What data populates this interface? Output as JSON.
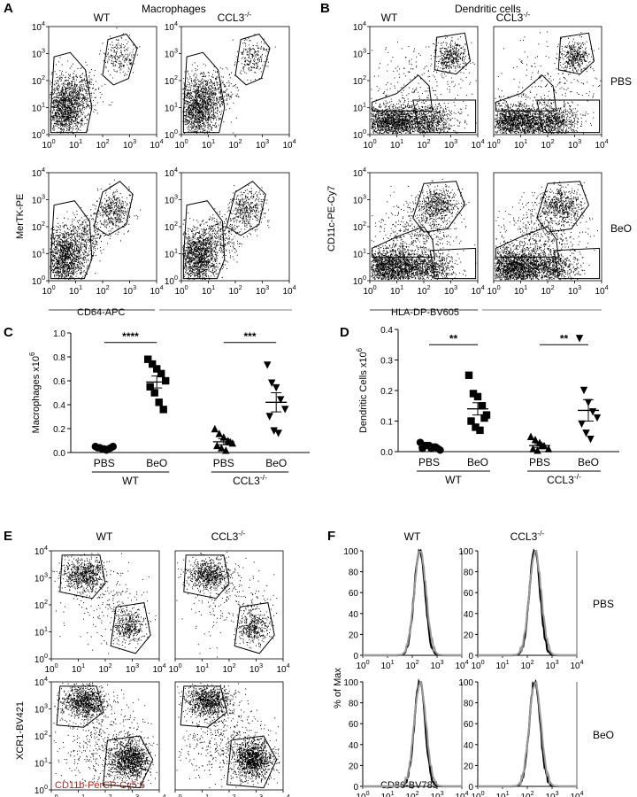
{
  "panels": {
    "A": {
      "label": "A",
      "title": "Macrophages",
      "columns": [
        "WT",
        "CCL3-/-"
      ],
      "xlabel": "CD64-APC",
      "ylabel": "MerTK-PE"
    },
    "B": {
      "label": "B",
      "title": "Dendritic cells",
      "columns": [
        "WT",
        "CCL3-/-"
      ],
      "rows": [
        "PBS",
        "BeO"
      ],
      "xlabel": "HLA-DP-BV605",
      "ylabel": "CD11c-PE-Cy7"
    },
    "C": {
      "label": "C",
      "ylabel": "Macrophages x10^6",
      "groups": [
        "PBS",
        "BeO",
        "PBS",
        "BeO"
      ],
      "genotypes": [
        "WT",
        "CCL3-/-"
      ],
      "significance": [
        "****",
        "***"
      ]
    },
    "D": {
      "label": "D",
      "ylabel": "Dendritic Cells x10^6",
      "groups": [
        "PBS",
        "BeO",
        "PBS",
        "BeO"
      ],
      "genotypes": [
        "WT",
        "CCL3-/-"
      ],
      "significance": [
        "**",
        "**"
      ]
    },
    "E": {
      "label": "E",
      "columns": [
        "WT",
        "CCL3-/-"
      ],
      "xlabel": "CD11b-PerCP-Cy5.5",
      "ylabel": "XCR1-BV421"
    },
    "F": {
      "label": "F",
      "columns": [
        "WT",
        "CCL3-/-"
      ],
      "rows": [
        "PBS",
        "BeO"
      ],
      "xlabel": "CD86-BV785",
      "ylabel": "% of Max"
    }
  },
  "log_ticks": [
    "10^0",
    "10^1",
    "10^2",
    "10^3",
    "10^4"
  ],
  "colors": {
    "axis": "#000000",
    "dots": "#000000",
    "histogram_gray": "#9a9a9a",
    "E_xlabel": "#c0221d"
  },
  "chart_data": [
    {
      "type": "scatter",
      "panel": "C",
      "ylabel": "Macrophages x10^6",
      "ylim": [
        0,
        1.0
      ],
      "yticks": [
        0.0,
        0.2,
        0.4,
        0.6,
        0.8,
        1.0
      ],
      "categories": [
        "PBS WT",
        "BeO WT",
        "PBS CCL3-/-",
        "BeO CCL3-/-"
      ],
      "markers": [
        "circle",
        "square",
        "triangle-up",
        "triangle-down"
      ],
      "series": [
        {
          "name": "PBS WT",
          "values": [
            0.05,
            0.04,
            0.03,
            0.03,
            0.05,
            0.04,
            0.03,
            0.02,
            0.04
          ],
          "mean": 0.04,
          "sem": 0.005
        },
        {
          "name": "BeO WT",
          "values": [
            0.78,
            0.74,
            0.7,
            0.66,
            0.6,
            0.55,
            0.5,
            0.42,
            0.36
          ],
          "mean": 0.59,
          "sem": 0.05
        },
        {
          "name": "PBS CCL3-/-",
          "values": [
            0.2,
            0.16,
            0.13,
            0.1,
            0.08,
            0.06,
            0.04,
            0.02,
            0.09
          ],
          "mean": 0.09,
          "sem": 0.025
        },
        {
          "name": "BeO CCL3-/-",
          "values": [
            0.73,
            0.58,
            0.54,
            0.44,
            0.36,
            0.3,
            0.18,
            0.16
          ],
          "mean": 0.42,
          "sem": 0.08
        }
      ],
      "significance": [
        {
          "between": [
            0,
            1
          ],
          "label": "****",
          "y": 0.92
        },
        {
          "between": [
            2,
            3
          ],
          "label": "***",
          "y": 0.92
        }
      ]
    },
    {
      "type": "scatter",
      "panel": "D",
      "ylabel": "Dendritic Cells x10^6",
      "ylim": [
        0,
        0.4
      ],
      "yticks": [
        0.0,
        0.1,
        0.2,
        0.3,
        0.4
      ],
      "categories": [
        "PBS WT",
        "BeO WT",
        "PBS CCL3-/-",
        "BeO CCL3-/-"
      ],
      "markers": [
        "circle",
        "square",
        "triangle-up",
        "triangle-down"
      ],
      "series": [
        {
          "name": "PBS WT",
          "values": [
            0.03,
            0.02,
            0.02,
            0.015,
            0.01,
            0.01,
            0.02,
            0.01,
            0.015,
            0.005
          ],
          "mean": 0.015,
          "sem": 0.003
        },
        {
          "name": "BeO WT",
          "values": [
            0.25,
            0.19,
            0.18,
            0.15,
            0.12,
            0.1,
            0.08,
            0.07,
            0.11
          ],
          "mean": 0.14,
          "sem": 0.02
        },
        {
          "name": "PBS CCL3-/-",
          "values": [
            0.05,
            0.04,
            0.03,
            0.02,
            0.01,
            0.01,
            0.005,
            0.02
          ],
          "mean": 0.02,
          "sem": 0.006
        },
        {
          "name": "BeO CCL3-/-",
          "values": [
            0.37,
            0.2,
            0.16,
            0.13,
            0.11,
            0.09,
            0.06,
            0.04
          ],
          "mean": 0.135,
          "sem": 0.035
        }
      ],
      "significance": [
        {
          "between": [
            0,
            1
          ],
          "label": "**",
          "y": 0.35
        },
        {
          "between": [
            2,
            3
          ],
          "label": "**",
          "y": 0.35
        }
      ]
    },
    {
      "type": "histogram",
      "panel": "F",
      "xscale": "log",
      "xlim": [
        1,
        10000
      ],
      "ylim": [
        0,
        100
      ],
      "yticks": [
        0,
        20,
        40,
        60,
        80,
        100
      ],
      "series": [
        {
          "name": "black",
          "peak_log10": 2.3,
          "width": 0.22
        },
        {
          "name": "gray",
          "peak_log10": 2.32,
          "width": 0.24
        }
      ]
    }
  ]
}
